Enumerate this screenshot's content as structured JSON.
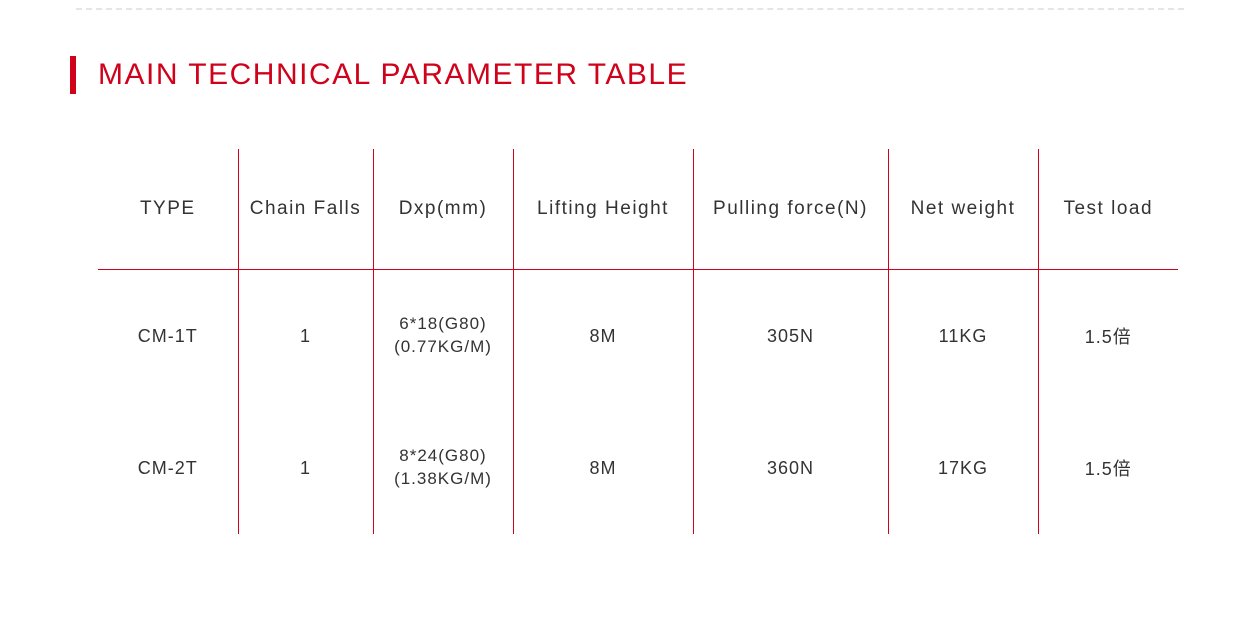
{
  "title": "MAIN TECHNICAL PARAMETER TABLE",
  "colors": {
    "accent": "#d0021b",
    "text": "#333333",
    "dashed": "#e5e5e5",
    "background": "#ffffff"
  },
  "table": {
    "columns": [
      "TYPE",
      "Chain Falls",
      "Dxp(mm)",
      "Lifting Height",
      "Pulling force(N)",
      "Net weight",
      "Test load"
    ],
    "rows": [
      {
        "type": "CM-1T",
        "chain_falls": "1",
        "dxp_line1": "6*18(G80)",
        "dxp_line2": "(0.77KG/M)",
        "lifting_height": "8M",
        "pulling_force": "305N",
        "net_weight": "11KG",
        "test_load": "1.5倍"
      },
      {
        "type": "CM-2T",
        "chain_falls": "1",
        "dxp_line1": "8*24(G80)",
        "dxp_line2": "(1.38KG/M)",
        "lifting_height": "8M",
        "pulling_force": "360N",
        "net_weight": "17KG",
        "test_load": "1.5倍"
      }
    ]
  }
}
